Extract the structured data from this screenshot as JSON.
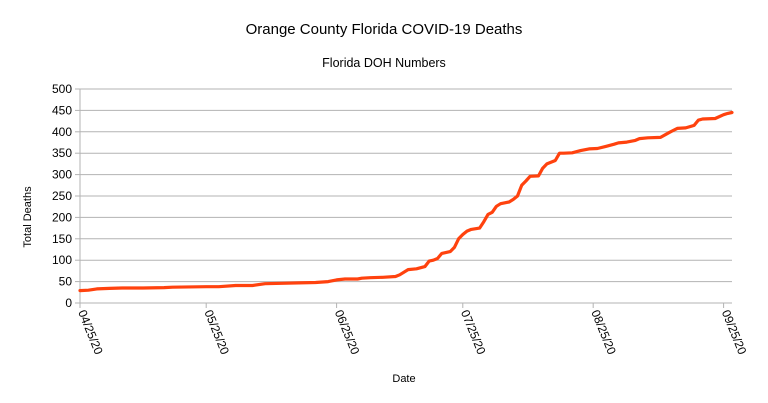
{
  "chart_data": {
    "type": "line",
    "title": "Orange County Florida COVID-19 Deaths",
    "subtitle": "Florida DOH Numbers",
    "xlabel": "Date",
    "ylabel": "Total Deaths",
    "ylim": [
      0,
      500
    ],
    "yticks": [
      0,
      50,
      100,
      150,
      200,
      250,
      300,
      350,
      400,
      450,
      500
    ],
    "xlim": [
      "2020-04-25",
      "2020-09-27"
    ],
    "xticks": [
      {
        "date": "2020-04-25",
        "label": "04/25/20"
      },
      {
        "date": "2020-05-25",
        "label": "05/25/20"
      },
      {
        "date": "2020-06-25",
        "label": "06/25/20"
      },
      {
        "date": "2020-07-25",
        "label": "07/25/20"
      },
      {
        "date": "2020-08-25",
        "label": "08/25/20"
      },
      {
        "date": "2020-09-25",
        "label": "09/25/20"
      }
    ],
    "grid": "horizontal",
    "legend": "none",
    "series_color": "#ff420e",
    "series": [
      {
        "points": [
          [
            "2020-04-25",
            29
          ],
          [
            "2020-04-27",
            30
          ],
          [
            "2020-04-29",
            33
          ],
          [
            "2020-05-02",
            34
          ],
          [
            "2020-05-05",
            35
          ],
          [
            "2020-05-10",
            35
          ],
          [
            "2020-05-15",
            36
          ],
          [
            "2020-05-17",
            37
          ],
          [
            "2020-05-25",
            38
          ],
          [
            "2020-05-28",
            38
          ],
          [
            "2020-06-01",
            41
          ],
          [
            "2020-06-05",
            41
          ],
          [
            "2020-06-08",
            45
          ],
          [
            "2020-06-12",
            46
          ],
          [
            "2020-06-16",
            47
          ],
          [
            "2020-06-20",
            48
          ],
          [
            "2020-06-23",
            50
          ],
          [
            "2020-06-25",
            54
          ],
          [
            "2020-06-27",
            56
          ],
          [
            "2020-06-30",
            56
          ],
          [
            "2020-07-01",
            58
          ],
          [
            "2020-07-03",
            59
          ],
          [
            "2020-07-06",
            60
          ],
          [
            "2020-07-09",
            62
          ],
          [
            "2020-07-10",
            66
          ],
          [
            "2020-07-12",
            78
          ],
          [
            "2020-07-14",
            80
          ],
          [
            "2020-07-16",
            85
          ],
          [
            "2020-07-17",
            98
          ],
          [
            "2020-07-18",
            100
          ],
          [
            "2020-07-19",
            104
          ],
          [
            "2020-07-20",
            116
          ],
          [
            "2020-07-22",
            120
          ],
          [
            "2020-07-23",
            130
          ],
          [
            "2020-07-24",
            150
          ],
          [
            "2020-07-25",
            160
          ],
          [
            "2020-07-26",
            168
          ],
          [
            "2020-07-27",
            172
          ],
          [
            "2020-07-29",
            175
          ],
          [
            "2020-07-30",
            190
          ],
          [
            "2020-07-31",
            207
          ],
          [
            "2020-08-01",
            212
          ],
          [
            "2020-08-02",
            226
          ],
          [
            "2020-08-03",
            232
          ],
          [
            "2020-08-04",
            234
          ],
          [
            "2020-08-05",
            236
          ],
          [
            "2020-08-06",
            242
          ],
          [
            "2020-08-07",
            250
          ],
          [
            "2020-08-08",
            275
          ],
          [
            "2020-08-09",
            285
          ],
          [
            "2020-08-10",
            296
          ],
          [
            "2020-08-12",
            297
          ],
          [
            "2020-08-13",
            315
          ],
          [
            "2020-08-14",
            325
          ],
          [
            "2020-08-16",
            333
          ],
          [
            "2020-08-17",
            350
          ],
          [
            "2020-08-18",
            350
          ],
          [
            "2020-08-20",
            351
          ],
          [
            "2020-08-22",
            356
          ],
          [
            "2020-08-24",
            360
          ],
          [
            "2020-08-26",
            361
          ],
          [
            "2020-08-28",
            366
          ],
          [
            "2020-08-30",
            371
          ],
          [
            "2020-08-31",
            374
          ],
          [
            "2020-09-02",
            376
          ],
          [
            "2020-09-04",
            380
          ],
          [
            "2020-09-05",
            384
          ],
          [
            "2020-09-07",
            386
          ],
          [
            "2020-09-10",
            387
          ],
          [
            "2020-09-12",
            398
          ],
          [
            "2020-09-13",
            403
          ],
          [
            "2020-09-14",
            408
          ],
          [
            "2020-09-16",
            409
          ],
          [
            "2020-09-18",
            415
          ],
          [
            "2020-09-19",
            427
          ],
          [
            "2020-09-20",
            430
          ],
          [
            "2020-09-23",
            431
          ],
          [
            "2020-09-25",
            440
          ],
          [
            "2020-09-26",
            443
          ],
          [
            "2020-09-27",
            445
          ]
        ]
      }
    ]
  }
}
